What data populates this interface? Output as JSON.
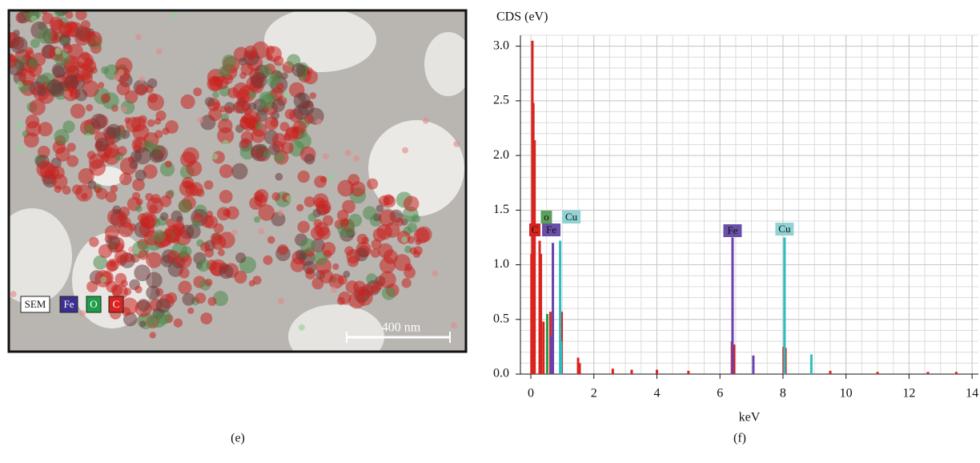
{
  "image_panel": {
    "legend": [
      "SEM",
      "Fe",
      "O",
      "C"
    ],
    "legend_colors": [
      "#ffffff",
      "#3b2f8f",
      "#1f9e4a",
      "#d9231f"
    ],
    "scale_bar": "400 nm",
    "caption": "(e)"
  },
  "chart_data": {
    "type": "spectrum",
    "caption": "(f)",
    "y_label": "CDS (eV)",
    "x_label": "keV",
    "xlim": [
      -0.33,
      14.2
    ],
    "ylim": [
      0,
      3.1
    ],
    "xticks": [
      0,
      2,
      4,
      6,
      8,
      10,
      12,
      14
    ],
    "yticks": [
      {
        "value": 0,
        "label": "0.0"
      },
      {
        "value": 0.5,
        "label": "0.5"
      },
      {
        "value": 1,
        "label": "1.0"
      },
      {
        "value": 1.5,
        "label": "1.5"
      },
      {
        "value": 2,
        "label": "2.0"
      },
      {
        "value": 2.5,
        "label": "2.5"
      },
      {
        "value": 3,
        "label": "3.0"
      }
    ],
    "grid": true,
    "series": [
      {
        "name": "C",
        "color": "#d9231f",
        "x": [
          0.02,
          0.05,
          0.08,
          0.12,
          0.28,
          0.32,
          0.4,
          0.62,
          0.98,
          1.5,
          1.55,
          2.6,
          3.2,
          4.0,
          5.0,
          6.38,
          6.45,
          8.02,
          8.08,
          9.5,
          11.0,
          12.6,
          13.5
        ],
        "values": [
          1.1,
          3.05,
          2.48,
          2.14,
          1.22,
          1.1,
          0.48,
          0.57,
          0.57,
          0.15,
          0.1,
          0.05,
          0.04,
          0.04,
          0.03,
          0.3,
          0.27,
          0.25,
          0.24,
          0.03,
          0.02,
          0.02,
          0.02
        ]
      },
      {
        "name": "O",
        "color": "#1f9e4a",
        "x": [
          0.52
        ],
        "values": [
          0.55
        ]
      },
      {
        "name": "Fe",
        "color": "#6a3fb0",
        "x": [
          0.65,
          0.7,
          6.4,
          7.06
        ],
        "values": [
          0.35,
          1.2,
          1.25,
          0.17
        ]
      },
      {
        "name": "Cu",
        "color": "#2fbcc0",
        "x": [
          0.93,
          0.96,
          8.05,
          8.9
        ],
        "values": [
          1.22,
          0.3,
          1.25,
          0.18
        ]
      }
    ],
    "annotations": [
      {
        "text": "C",
        "x": 0.28,
        "color": "#d9231f"
      },
      {
        "text": "o",
        "x": 0.52,
        "color": "#5aa05a"
      },
      {
        "text": "Cu",
        "x": 0.93,
        "color": "#8fd3d5"
      },
      {
        "text": "Fe",
        "x": 0.7,
        "color": "#6a4fa8"
      },
      {
        "text": "Fe",
        "x": 6.4,
        "color": "#6a4fa8"
      },
      {
        "text": "Cu",
        "x": 8.05,
        "color": "#8fd3d5"
      }
    ]
  }
}
